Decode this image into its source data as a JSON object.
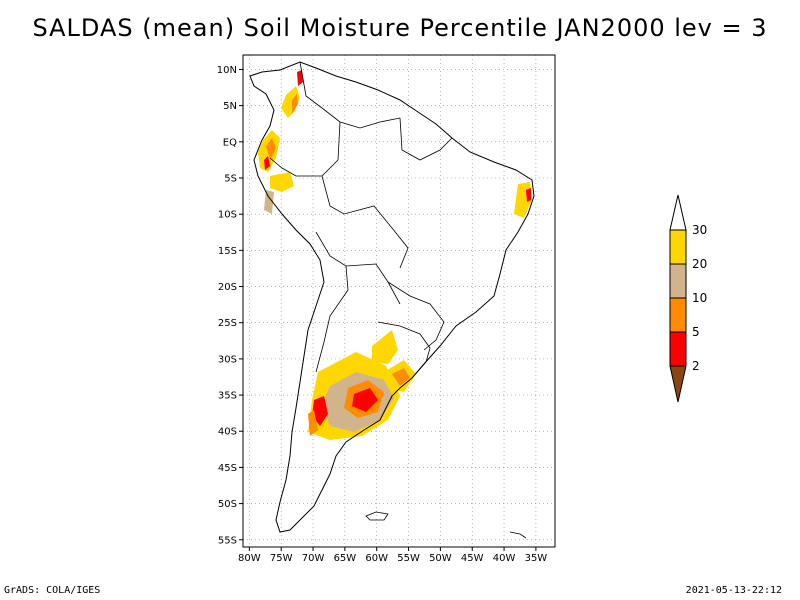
{
  "title": "SALDAS (mean) Soil Moisture Percentile JAN2000 lev = 3",
  "footer_left": "GrADS: COLA/IGES",
  "footer_right": "2021-05-13-22:12",
  "chart_data": {
    "type": "heatmap",
    "title": "SALDAS (mean) Soil Moisture Percentile JAN2000 lev = 3",
    "xlabel": "",
    "ylabel": "",
    "x_range": [
      -81,
      -32
    ],
    "y_range": [
      -56,
      12
    ],
    "x_ticks": [
      {
        "value": -80,
        "label": "80W"
      },
      {
        "value": -75,
        "label": "75W"
      },
      {
        "value": -70,
        "label": "70W"
      },
      {
        "value": -65,
        "label": "65W"
      },
      {
        "value": -60,
        "label": "60W"
      },
      {
        "value": -55,
        "label": "55W"
      },
      {
        "value": -50,
        "label": "50W"
      },
      {
        "value": -45,
        "label": "45W"
      },
      {
        "value": -40,
        "label": "40W"
      },
      {
        "value": -35,
        "label": "35W"
      }
    ],
    "y_ticks": [
      {
        "value": 10,
        "label": "10N"
      },
      {
        "value": 5,
        "label": "5N"
      },
      {
        "value": 0,
        "label": "EQ"
      },
      {
        "value": -5,
        "label": "5S"
      },
      {
        "value": -10,
        "label": "10S"
      },
      {
        "value": -15,
        "label": "15S"
      },
      {
        "value": -20,
        "label": "20S"
      },
      {
        "value": -25,
        "label": "25S"
      },
      {
        "value": -30,
        "label": "30S"
      },
      {
        "value": -35,
        "label": "35S"
      },
      {
        "value": -40,
        "label": "40S"
      },
      {
        "value": -45,
        "label": "45S"
      },
      {
        "value": -50,
        "label": "50S"
      },
      {
        "value": -55,
        "label": "55S"
      }
    ],
    "grid": true,
    "colorbar": {
      "levels": [
        2,
        5,
        10,
        20,
        30
      ],
      "colors": [
        "#8b4513",
        "#ff0000",
        "#ff8c00",
        "#d2b48c",
        "#ffd700",
        "#ffffff"
      ]
    }
  },
  "colors": {
    "dry_2": "#8b4513",
    "pct_2_5": "#ff0000",
    "pct_5_10": "#ff8c00",
    "pct_10_20": "#d2b48c",
    "pct_20_30": "#ffd700",
    "above_30": "#ffffff"
  }
}
